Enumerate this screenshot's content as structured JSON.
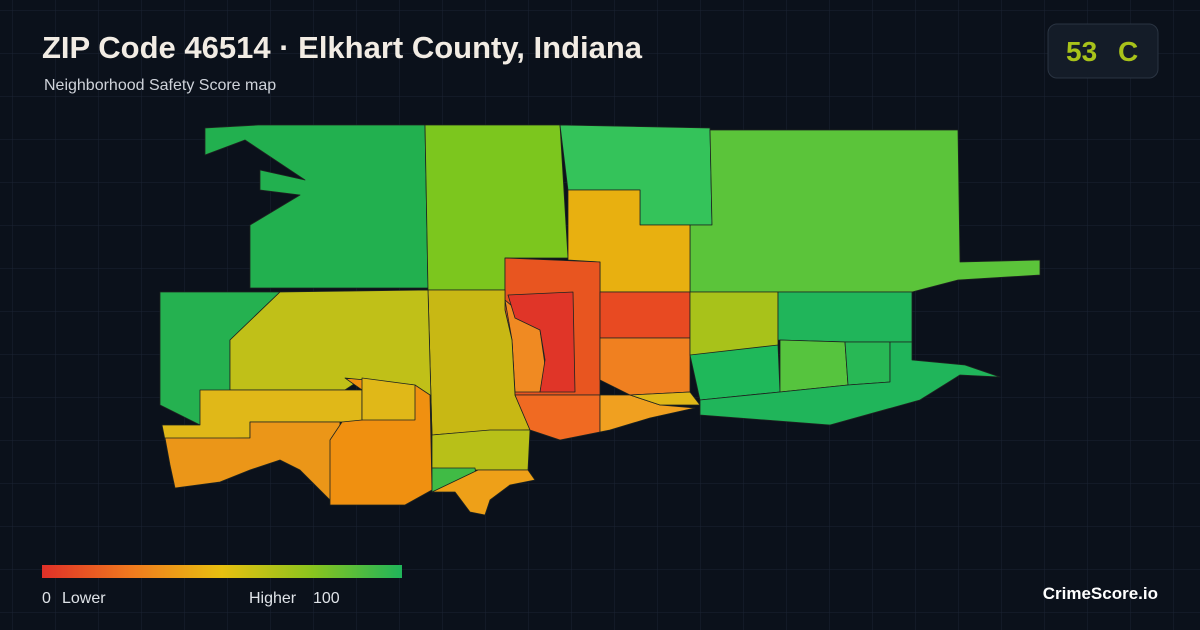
{
  "header": {
    "title": "ZIP Code 46514 · Elkhart County, Indiana",
    "subtitle": "Neighborhood Safety Score map"
  },
  "score": {
    "value": 53,
    "grade": "C"
  },
  "legend": {
    "min": 0,
    "min_label": "Lower",
    "max_label": "Higher",
    "max": 100
  },
  "footer": {
    "brand": "CrimeScore.io"
  }
}
